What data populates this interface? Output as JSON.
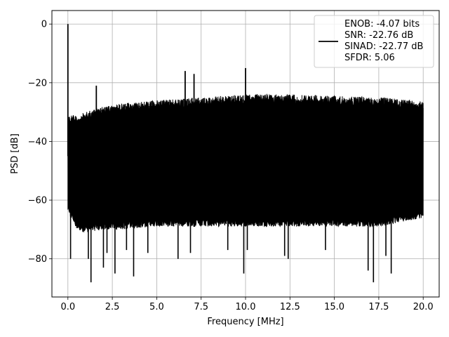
{
  "chart_data": {
    "type": "line",
    "xlabel": "Frequency [MHz]",
    "ylabel": "PSD [dB]",
    "xlim": [
      -0.9,
      20.9
    ],
    "ylim": [
      -93,
      4.6
    ],
    "xticks": [
      0.0,
      2.5,
      5.0,
      7.5,
      10.0,
      12.5,
      15.0,
      17.5,
      20.0
    ],
    "xtick_labels": [
      "0.0",
      "2.5",
      "5.0",
      "7.5",
      "10.0",
      "12.5",
      "15.0",
      "17.5",
      "20.0"
    ],
    "yticks": [
      0,
      -20,
      -40,
      -60,
      -80
    ],
    "ytick_labels": [
      "0",
      "−20",
      "−40",
      "−60",
      "−80"
    ],
    "grid": true,
    "legend_position": "top-right",
    "series": [
      {
        "name": "ENOB: -4.07 bits\nSNR: -22.76 dB\nSINAD: -22.77 dB\nSFDR: 5.06",
        "color": "#000000",
        "noise_floor_envelope": {
          "x": [
            0.0,
            0.5,
            1.0,
            2.0,
            3.0,
            5.0,
            7.5,
            10.0,
            12.5,
            15.0,
            17.5,
            20.0
          ],
          "upper": [
            -31,
            -31,
            -30,
            -28,
            -27,
            -26,
            -25,
            -24,
            -24,
            -24.5,
            -25,
            -26
          ],
          "lower": [
            -64,
            -70,
            -71,
            -70,
            -70,
            -69,
            -69,
            -69,
            -69,
            -69,
            -69,
            -66
          ]
        },
        "dips": [
          {
            "x": 0.15,
            "y": -80
          },
          {
            "x": 1.3,
            "y": -88
          },
          {
            "x": 1.15,
            "y": -80
          },
          {
            "x": 2.0,
            "y": -83
          },
          {
            "x": 2.2,
            "y": -78
          },
          {
            "x": 2.65,
            "y": -85
          },
          {
            "x": 3.3,
            "y": -77
          },
          {
            "x": 3.7,
            "y": -86
          },
          {
            "x": 4.5,
            "y": -78
          },
          {
            "x": 6.2,
            "y": -80
          },
          {
            "x": 6.9,
            "y": -78
          },
          {
            "x": 9.0,
            "y": -77
          },
          {
            "x": 9.9,
            "y": -85
          },
          {
            "x": 10.1,
            "y": -77
          },
          {
            "x": 12.4,
            "y": -80
          },
          {
            "x": 12.2,
            "y": -79
          },
          {
            "x": 14.5,
            "y": -77
          },
          {
            "x": 16.9,
            "y": -84
          },
          {
            "x": 17.2,
            "y": -88
          },
          {
            "x": 18.2,
            "y": -85
          },
          {
            "x": 17.9,
            "y": -79
          }
        ],
        "spurs": [
          {
            "x": 0.0,
            "y": 0
          },
          {
            "x": 1.6,
            "y": -21
          },
          {
            "x": 6.6,
            "y": -16
          },
          {
            "x": 7.1,
            "y": -17
          },
          {
            "x": 10.0,
            "y": -15
          }
        ]
      }
    ]
  }
}
